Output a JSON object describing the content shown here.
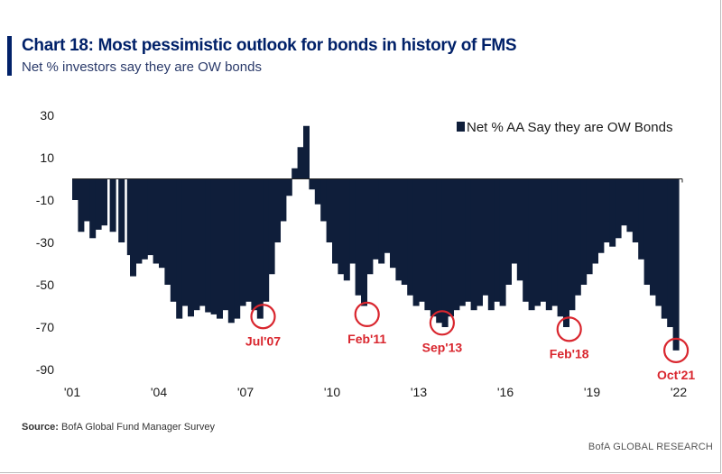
{
  "header": {
    "title": "Chart 18: Most pessimistic outlook for bonds in history of FMS",
    "subtitle": "Net % investors say they are OW bonds"
  },
  "footer": {
    "source_label": "Source:",
    "source_text": "BofA Global Fund Manager Survey",
    "brand": "BofA GLOBAL RESEARCH"
  },
  "colors": {
    "bar": "#0f1e3a",
    "annotation": "#d9262e",
    "title": "#012169"
  },
  "chart_data": {
    "type": "bar",
    "title": "Chart 18: Most pessimistic outlook for bonds in history of FMS",
    "subtitle": "Net % investors say they are OW bonds",
    "xlabel": "",
    "ylabel": "",
    "ylim": [
      -90,
      30
    ],
    "yticks": [
      30,
      10,
      -10,
      -30,
      -50,
      -70,
      -90
    ],
    "x_domain": [
      2001.0,
      2022.0
    ],
    "xticks": [
      {
        "label": "'01",
        "x": 2001
      },
      {
        "label": "'04",
        "x": 2004
      },
      {
        "label": "'07",
        "x": 2007
      },
      {
        "label": "'10",
        "x": 2010
      },
      {
        "label": "'13",
        "x": 2013
      },
      {
        "label": "'16",
        "x": 2016
      },
      {
        "label": "'19",
        "x": 2019
      },
      {
        "label": "'22",
        "x": 2022
      }
    ],
    "legend": {
      "position": "top-right",
      "entries": [
        "Net % AA Say they are OW Bonds"
      ]
    },
    "grid": false,
    "series": [
      {
        "name": "Net % AA Say they are OW Bonds",
        "points": [
          [
            2001.0,
            -10
          ],
          [
            2001.2,
            -25
          ],
          [
            2001.4,
            -20
          ],
          [
            2001.6,
            -28
          ],
          [
            2001.8,
            -24
          ],
          [
            2002.0,
            -22
          ],
          [
            2002.3,
            -25
          ],
          [
            2002.6,
            -30
          ],
          [
            2002.9,
            -36
          ],
          [
            2003.0,
            -46
          ],
          [
            2003.2,
            -40
          ],
          [
            2003.4,
            -38
          ],
          [
            2003.6,
            -36
          ],
          [
            2003.8,
            -40
          ],
          [
            2004.0,
            -42
          ],
          [
            2004.2,
            -50
          ],
          [
            2004.4,
            -58
          ],
          [
            2004.6,
            -66
          ],
          [
            2004.8,
            -60
          ],
          [
            2005.0,
            -65
          ],
          [
            2005.2,
            -62
          ],
          [
            2005.4,
            -60
          ],
          [
            2005.6,
            -63
          ],
          [
            2005.8,
            -64
          ],
          [
            2006.0,
            -66
          ],
          [
            2006.2,
            -62
          ],
          [
            2006.4,
            -68
          ],
          [
            2006.6,
            -66
          ],
          [
            2006.8,
            -60
          ],
          [
            2007.0,
            -58
          ],
          [
            2007.2,
            -62
          ],
          [
            2007.4,
            -66
          ],
          [
            2007.6,
            -58
          ],
          [
            2007.8,
            -45
          ],
          [
            2008.0,
            -30
          ],
          [
            2008.2,
            -20
          ],
          [
            2008.4,
            -8
          ],
          [
            2008.6,
            5
          ],
          [
            2008.8,
            15
          ],
          [
            2009.0,
            25
          ],
          [
            2009.2,
            -5
          ],
          [
            2009.4,
            -12
          ],
          [
            2009.6,
            -20
          ],
          [
            2009.8,
            -30
          ],
          [
            2010.0,
            -40
          ],
          [
            2010.2,
            -45
          ],
          [
            2010.4,
            -48
          ],
          [
            2010.6,
            -40
          ],
          [
            2010.8,
            -55
          ],
          [
            2011.0,
            -60
          ],
          [
            2011.2,
            -45
          ],
          [
            2011.4,
            -38
          ],
          [
            2011.6,
            -40
          ],
          [
            2011.8,
            -35
          ],
          [
            2012.0,
            -42
          ],
          [
            2012.2,
            -48
          ],
          [
            2012.4,
            -50
          ],
          [
            2012.6,
            -55
          ],
          [
            2012.8,
            -60
          ],
          [
            2013.0,
            -58
          ],
          [
            2013.2,
            -62
          ],
          [
            2013.4,
            -65
          ],
          [
            2013.6,
            -68
          ],
          [
            2013.8,
            -70
          ],
          [
            2014.0,
            -65
          ],
          [
            2014.2,
            -62
          ],
          [
            2014.4,
            -60
          ],
          [
            2014.6,
            -58
          ],
          [
            2014.8,
            -62
          ],
          [
            2015.0,
            -60
          ],
          [
            2015.2,
            -55
          ],
          [
            2015.4,
            -62
          ],
          [
            2015.6,
            -58
          ],
          [
            2015.8,
            -60
          ],
          [
            2016.0,
            -50
          ],
          [
            2016.2,
            -40
          ],
          [
            2016.4,
            -48
          ],
          [
            2016.6,
            -58
          ],
          [
            2016.8,
            -62
          ],
          [
            2017.0,
            -60
          ],
          [
            2017.2,
            -58
          ],
          [
            2017.4,
            -62
          ],
          [
            2017.6,
            -60
          ],
          [
            2017.8,
            -65
          ],
          [
            2018.0,
            -70
          ],
          [
            2018.2,
            -62
          ],
          [
            2018.4,
            -55
          ],
          [
            2018.6,
            -50
          ],
          [
            2018.8,
            -45
          ],
          [
            2019.0,
            -40
          ],
          [
            2019.2,
            -35
          ],
          [
            2019.4,
            -30
          ],
          [
            2019.6,
            -32
          ],
          [
            2019.8,
            -28
          ],
          [
            2020.0,
            -22
          ],
          [
            2020.2,
            -25
          ],
          [
            2020.4,
            -30
          ],
          [
            2020.6,
            -38
          ],
          [
            2020.8,
            -50
          ],
          [
            2021.0,
            -55
          ],
          [
            2021.2,
            -60
          ],
          [
            2021.4,
            -66
          ],
          [
            2021.6,
            -70
          ],
          [
            2021.8,
            -81
          ]
        ]
      }
    ],
    "annotations": [
      {
        "label": "Jul'07",
        "x": 2007.5,
        "y": -65
      },
      {
        "label": "Feb'11",
        "x": 2011.1,
        "y": -64
      },
      {
        "label": "Sep'13",
        "x": 2013.7,
        "y": -68
      },
      {
        "label": "Feb'18",
        "x": 2018.1,
        "y": -71
      },
      {
        "label": "Oct'21",
        "x": 2021.8,
        "y": -81
      }
    ]
  }
}
